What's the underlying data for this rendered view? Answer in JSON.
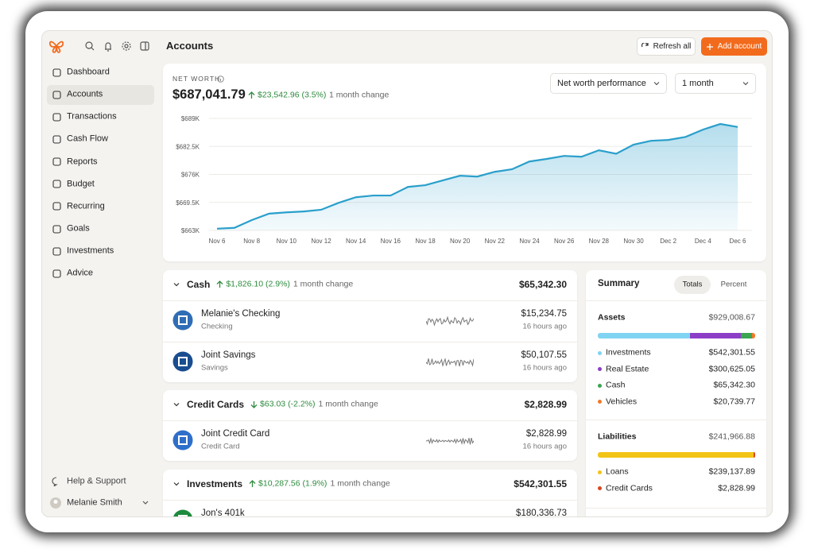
{
  "header": {
    "title": "Accounts",
    "refresh": "Refresh all",
    "add": "Add account"
  },
  "sidebar": {
    "nav": [
      "Dashboard",
      "Accounts",
      "Transactions",
      "Cash Flow",
      "Reports",
      "Budget",
      "Recurring",
      "Goals",
      "Investments",
      "Advice"
    ],
    "active": 1,
    "help": "Help & Support",
    "user": "Melanie Smith"
  },
  "net_worth": {
    "label": "NET WORTH",
    "value": "$687,041.79",
    "change": "$23,542.96 (3.5%)",
    "direction": "up",
    "period": "1 month change",
    "metric_select": "Net worth performance",
    "period_select": "1 month"
  },
  "chart_data": {
    "type": "area",
    "color": "#2a9fcb",
    "categories": [
      "Nov 6",
      null,
      "Nov 8",
      null,
      "Nov 10",
      null,
      "Nov 12",
      null,
      "Nov 14",
      null,
      "Nov 16",
      null,
      "Nov 18",
      null,
      "Nov 20",
      null,
      "Nov 22",
      null,
      "Nov 24",
      null,
      "Nov 26",
      null,
      "Nov 28",
      null,
      "Nov 30",
      null,
      "Dec 2",
      null,
      "Dec 4",
      null,
      "Dec 6"
    ],
    "values": [
      663.4,
      663.6,
      665.4,
      666.9,
      667.2,
      667.4,
      667.8,
      669.4,
      670.7,
      671.1,
      671.1,
      673.1,
      673.5,
      674.6,
      675.7,
      675.5,
      676.6,
      677.2,
      679.0,
      679.6,
      680.3,
      680.1,
      681.6,
      680.8,
      682.9,
      683.8,
      684.0,
      684.7,
      686.4,
      687.7,
      687.0
    ],
    "ylim": [
      663,
      689
    ],
    "yticks": [
      {
        "value": 663,
        "label": "$663K"
      },
      {
        "value": 669.5,
        "label": "$669.5K"
      },
      {
        "value": 676,
        "label": "$676K"
      },
      {
        "value": 682.5,
        "label": "$682.5K"
      },
      {
        "value": 689,
        "label": "$689K"
      }
    ],
    "grid": true
  },
  "groups": [
    {
      "name": "Cash",
      "change": "$1,826.10 (2.9%)",
      "direction": "up",
      "period": "1 month change",
      "total": "$65,342.30",
      "accounts": [
        {
          "name": "Melanie's Checking",
          "type": "Checking",
          "balance": "$15,234.75",
          "updated": "16 hours ago"
        },
        {
          "name": "Joint Savings",
          "type": "Savings",
          "balance": "$50,107.55",
          "updated": "16 hours ago"
        }
      ]
    },
    {
      "name": "Credit Cards",
      "change": "$63.03 (-2.2%)",
      "direction": "down",
      "period": "1 month change",
      "total": "$2,828.99",
      "accounts": [
        {
          "name": "Joint Credit Card",
          "type": "Credit Card",
          "balance": "$2,828.99",
          "updated": "16 hours ago"
        }
      ]
    },
    {
      "name": "Investments",
      "change": "$10,287.56 (1.9%)",
      "direction": "up",
      "period": "1 month change",
      "total": "$542,301.55",
      "accounts": [
        {
          "name": "Jon's 401k",
          "balance": "$180,336.73"
        }
      ]
    }
  ],
  "summary": {
    "title": "Summary",
    "tabs": [
      "Totals",
      "Percent"
    ],
    "active_tab": 0,
    "sections": [
      {
        "name": "Assets",
        "total": "$929,008.67",
        "items": [
          {
            "name": "Investments",
            "value": "$542,301.55",
            "color": "#7fd4f2"
          },
          {
            "name": "Real Estate",
            "value": "$300,625.05",
            "color": "#8c3fc6"
          },
          {
            "name": "Cash",
            "value": "$65,342.30",
            "color": "#3ba552"
          },
          {
            "name": "Vehicles",
            "value": "$20,739.77",
            "color": "#f07a2a"
          }
        ]
      },
      {
        "name": "Liabilities",
        "total": "$241,966.88",
        "items": [
          {
            "name": "Loans",
            "value": "$239,137.89",
            "color": "#f2c416"
          },
          {
            "name": "Credit Cards",
            "value": "$2,828.99",
            "color": "#d8471f"
          }
        ]
      }
    ]
  }
}
